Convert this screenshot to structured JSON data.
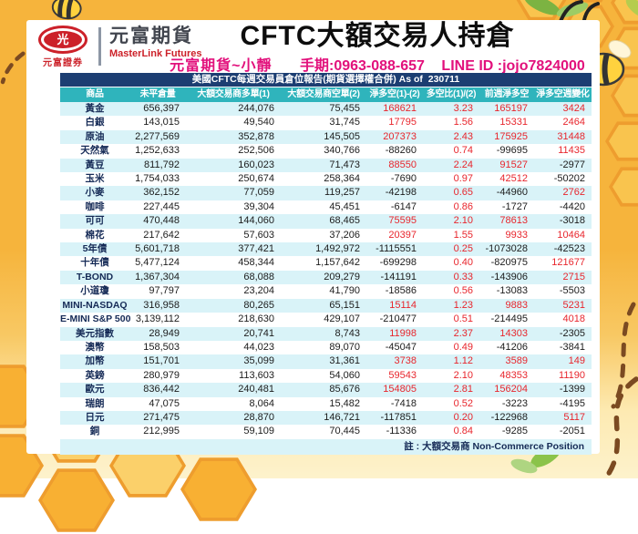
{
  "brand": {
    "logo_glyph": "光",
    "logo_caption": "元富證券",
    "name_zh": "元富期貨",
    "name_en": "MasterLink Futures"
  },
  "title": "CFTC大額交易人持倉",
  "contact": {
    "agent": "元富期貨~小靜",
    "phone": "手期:0963-088-657",
    "line": "LINE ID :jojo7824000"
  },
  "table": {
    "caption": "美國CFTC每週交易員倉位報告(期貨選擇權合併) As of  230711",
    "headers": [
      "商品",
      "未平倉量",
      "大額交易商多單(1)",
      "大額交易商空單(2)",
      "淨多空(1)-(2)",
      "多空比(1)/(2)",
      "前週淨多空",
      "淨多空週變化"
    ],
    "rows": [
      [
        "黃金",
        "656,397",
        "244,076",
        "75,455",
        "168621",
        "3.23",
        "165197",
        "3424"
      ],
      [
        "白銀",
        "143,015",
        "49,540",
        "31,745",
        "17795",
        "1.56",
        "15331",
        "2464"
      ],
      [
        "原油",
        "2,277,569",
        "352,878",
        "145,505",
        "207373",
        "2.43",
        "175925",
        "31448"
      ],
      [
        "天然氣",
        "1,252,633",
        "252,506",
        "340,766",
        "-88260",
        "0.74",
        "-99695",
        "11435"
      ],
      [
        "黃豆",
        "811,792",
        "160,023",
        "71,473",
        "88550",
        "2.24",
        "91527",
        "-2977"
      ],
      [
        "玉米",
        "1,754,033",
        "250,674",
        "258,364",
        "-7690",
        "0.97",
        "42512",
        "-50202"
      ],
      [
        "小麥",
        "362,152",
        "77,059",
        "119,257",
        "-42198",
        "0.65",
        "-44960",
        "2762"
      ],
      [
        "咖啡",
        "227,445",
        "39,304",
        "45,451",
        "-6147",
        "0.86",
        "-1727",
        "-4420"
      ],
      [
        "可可",
        "470,448",
        "144,060",
        "68,465",
        "75595",
        "2.10",
        "78613",
        "-3018"
      ],
      [
        "棉花",
        "217,642",
        "57,603",
        "37,206",
        "20397",
        "1.55",
        "9933",
        "10464"
      ],
      [
        "5年債",
        "5,601,718",
        "377,421",
        "1,492,972",
        "-1115551",
        "0.25",
        "-1073028",
        "-42523"
      ],
      [
        "十年債",
        "5,477,124",
        "458,344",
        "1,157,642",
        "-699298",
        "0.40",
        "-820975",
        "121677"
      ],
      [
        "T-BOND",
        "1,367,304",
        "68,088",
        "209,279",
        "-141191",
        "0.33",
        "-143906",
        "2715"
      ],
      [
        "小道瓊",
        "97,797",
        "23,204",
        "41,790",
        "-18586",
        "0.56",
        "-13083",
        "-5503"
      ],
      [
        "MINI-NASDAQ",
        "316,958",
        "80,265",
        "65,151",
        "15114",
        "1.23",
        "9883",
        "5231"
      ],
      [
        "E-MINI S&P 500",
        "3,139,112",
        "218,630",
        "429,107",
        "-210477",
        "0.51",
        "-214495",
        "4018"
      ],
      [
        "美元指數",
        "28,949",
        "20,741",
        "8,743",
        "11998",
        "2.37",
        "14303",
        "-2305"
      ],
      [
        "澳幣",
        "158,503",
        "44,023",
        "89,070",
        "-45047",
        "0.49",
        "-41206",
        "-3841"
      ],
      [
        "加幣",
        "151,701",
        "35,099",
        "31,361",
        "3738",
        "1.12",
        "3589",
        "149"
      ],
      [
        "英鎊",
        "280,979",
        "113,603",
        "54,060",
        "59543",
        "2.10",
        "48353",
        "11190"
      ],
      [
        "歐元",
        "836,442",
        "240,481",
        "85,676",
        "154805",
        "2.81",
        "156204",
        "-1399"
      ],
      [
        "瑞朗",
        "47,075",
        "8,064",
        "15,482",
        "-7418",
        "0.52",
        "-3223",
        "-4195"
      ],
      [
        "日元",
        "271,475",
        "28,870",
        "146,721",
        "-117851",
        "0.20",
        "-122968",
        "5117"
      ],
      [
        "銅",
        "212,995",
        "59,109",
        "70,445",
        "-11336",
        "0.84",
        "-9285",
        "-2051"
      ]
    ],
    "note": "註 : 大額交易商 Non-Commerce Position"
  },
  "colors": {
    "navy": "#1c3e72",
    "teal": "#2fb4bc",
    "stripe": "#d9f3f8",
    "red": "#e8262d",
    "ink": "#1c1c1c",
    "name-navy": "#152a56",
    "magenta": "#e2117c",
    "brand-red": "#cc2129"
  }
}
